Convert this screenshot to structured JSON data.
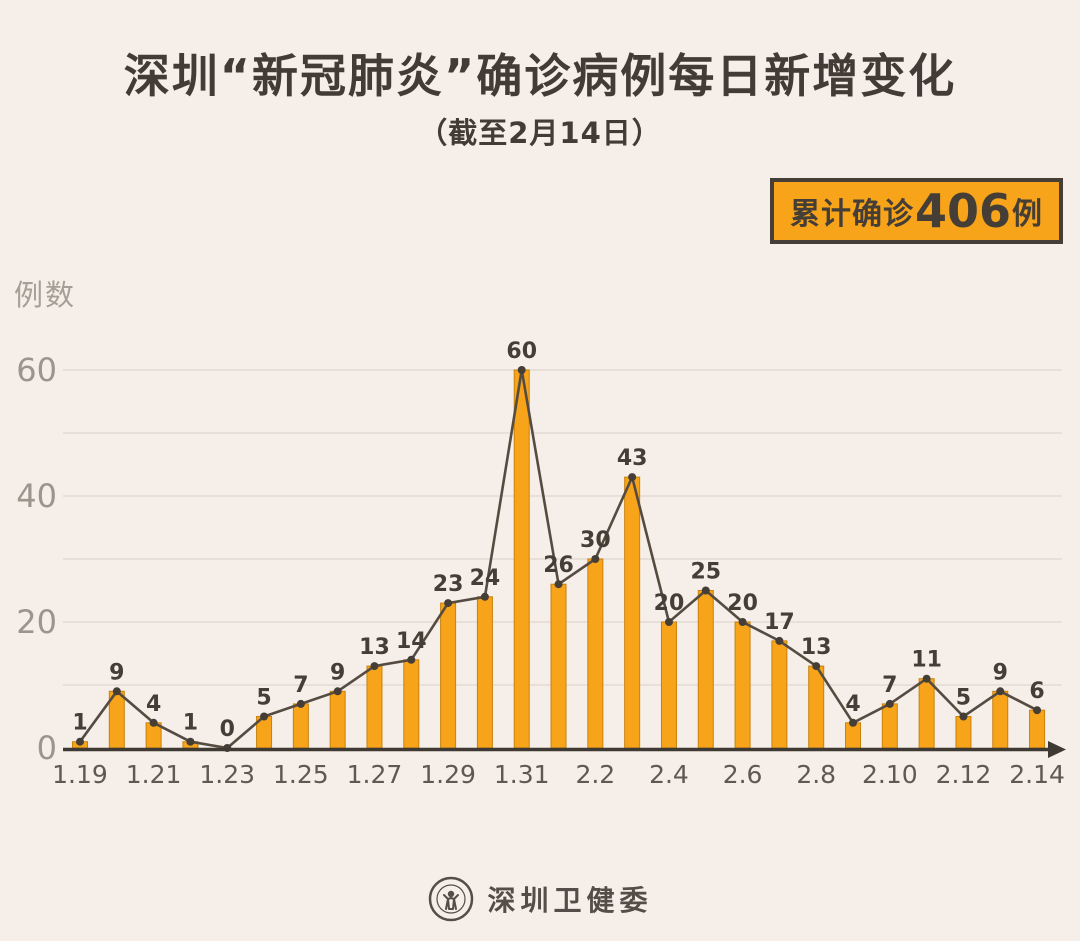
{
  "header": {
    "title": "深圳“新冠肺炎”确诊病例每日新增变化",
    "subtitle": "（截至2月14日）",
    "badge": {
      "prefix": "累计确诊",
      "number": "406",
      "suffix": "例"
    }
  },
  "footer": {
    "source": "深圳卫健委",
    "logo": "shenzhen-health-commission-seal"
  },
  "colors": {
    "background": "#f5eee9",
    "title_text": "#423c36",
    "bar_fill": "#f7a41a",
    "bar_border": "#c9820a",
    "line": "#554b41",
    "dot": "#453e37",
    "grid": "#e7dfd8",
    "axis": "#3f3933",
    "value_label": "#453e37",
    "x_tick": "#5f5952",
    "y_tick": "#9d948b",
    "y_title": "#a79e95",
    "badge_bg": "#f7a41a",
    "badge_border": "#453e37",
    "badge_text": "#453e37",
    "footer_text": "#534e48"
  },
  "chart_data": {
    "type": "bar",
    "overlay": "line",
    "title": "深圳“新冠肺炎”确诊病例每日新增变化",
    "subtitle": "（截至2月14日）",
    "xlabel": "",
    "ylabel": "例数",
    "categories": [
      "1.19",
      "1.20",
      "1.21",
      "1.22",
      "1.23",
      "1.24",
      "1.25",
      "1.26",
      "1.27",
      "1.28",
      "1.29",
      "1.30",
      "1.31",
      "2.1",
      "2.2",
      "2.3",
      "2.4",
      "2.5",
      "2.6",
      "2.7",
      "2.8",
      "2.9",
      "2.10",
      "2.11",
      "2.12",
      "2.13",
      "2.14"
    ],
    "values": [
      1,
      9,
      4,
      1,
      0,
      5,
      7,
      9,
      13,
      14,
      23,
      24,
      60,
      26,
      30,
      43,
      20,
      25,
      20,
      17,
      13,
      4,
      7,
      11,
      5,
      9,
      6
    ],
    "x_tick_labels": [
      "1.19",
      "1.21",
      "1.23",
      "1.25",
      "1.27",
      "1.29",
      "1.31",
      "2.2",
      "2.4",
      "2.6",
      "2.8",
      "2.10",
      "2.12",
      "2.14"
    ],
    "ylim": [
      0,
      65
    ],
    "yticks_labeled": [
      0,
      20,
      40,
      60
    ],
    "grid_step": 10,
    "grid": "horizontal",
    "legend": "none",
    "total": 406
  }
}
